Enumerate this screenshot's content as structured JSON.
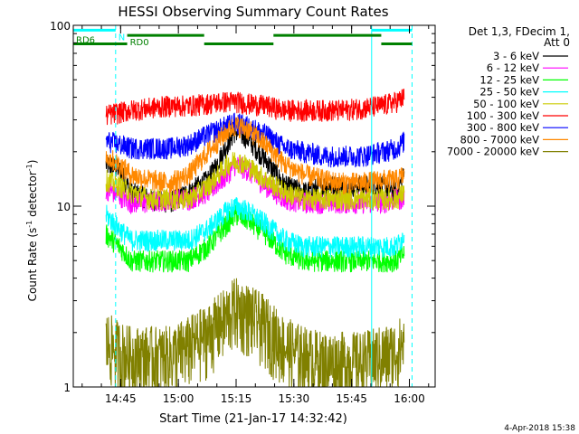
{
  "chart_data": {
    "type": "line",
    "title": "HESSI Observing Summary Count Rates",
    "xlabel": "Start Time (21-Jan-17 14:32:42)",
    "ylabel_main": "Count Rate (s",
    "ylabel_sup1": "-1",
    "ylabel_mid": " detector",
    "ylabel_sup2": "-1",
    "ylabel_end": ")",
    "yscale": "log",
    "ylim": [
      1,
      100
    ],
    "y_ticks": [
      {
        "v": 1,
        "label": "1"
      },
      {
        "v": 10,
        "label": "10"
      },
      {
        "v": 100,
        "label": "100"
      }
    ],
    "xlim_minutes": [
      0,
      94
    ],
    "x_ticks": [
      {
        "m": 12.3,
        "label": "14:45"
      },
      {
        "m": 27.3,
        "label": "15:00"
      },
      {
        "m": 42.3,
        "label": "15:15"
      },
      {
        "m": 57.3,
        "label": "15:30"
      },
      {
        "m": 72.3,
        "label": "15:45"
      },
      {
        "m": 87.3,
        "label": "16:00"
      }
    ],
    "legend_header": [
      "Det 1,3, FDecim 1,",
      "Att 0"
    ],
    "legend_position": "right",
    "series": [
      {
        "name": "3 - 6 keV",
        "color": "#000000",
        "x": [
          8.5,
          12,
          15,
          20,
          25,
          30,
          35,
          40,
          42,
          45,
          50,
          55,
          60,
          65,
          70,
          75,
          80,
          84,
          86
        ],
        "y": [
          17,
          16,
          12,
          11,
          10.5,
          12,
          14,
          22,
          26,
          24,
          18,
          13,
          12,
          13,
          13,
          13,
          13,
          12,
          15
        ]
      },
      {
        "name": "6 - 12 keV",
        "color": "#ff00ff",
        "x": [
          8.5,
          12,
          15,
          20,
          25,
          30,
          35,
          40,
          42,
          45,
          50,
          55,
          60,
          65,
          70,
          75,
          80,
          84,
          86
        ],
        "y": [
          12.5,
          11.5,
          10.5,
          10.5,
          11,
          11,
          12,
          15,
          17,
          16,
          13,
          11,
          10.5,
          10.5,
          10.5,
          10.5,
          10.5,
          11,
          11
        ]
      },
      {
        "name": "12 - 25 keV",
        "color": "#00ff00",
        "x": [
          8.5,
          12,
          15,
          20,
          25,
          30,
          35,
          40,
          42,
          45,
          50,
          55,
          60,
          65,
          70,
          75,
          80,
          84,
          86
        ],
        "y": [
          7,
          6,
          5,
          5,
          5,
          5,
          6,
          8,
          9,
          8.5,
          7,
          5.5,
          5,
          5,
          5,
          5,
          5,
          5,
          5.5
        ]
      },
      {
        "name": "25 - 50 keV",
        "color": "#00ffff",
        "x": [
          8.5,
          12,
          15,
          20,
          25,
          30,
          35,
          40,
          42,
          45,
          50,
          55,
          60,
          65,
          70,
          75,
          80,
          84,
          86
        ],
        "y": [
          9,
          7.5,
          6.5,
          6.5,
          6.5,
          6.5,
          7.5,
          9.5,
          10,
          9.5,
          8,
          6.5,
          6,
          6,
          6,
          6,
          6,
          6,
          7
        ]
      },
      {
        "name": "50 - 100 keV",
        "color": "#cccc00",
        "x": [
          8.5,
          12,
          15,
          20,
          25,
          30,
          35,
          40,
          42,
          45,
          50,
          55,
          60,
          65,
          70,
          75,
          80,
          84,
          86
        ],
        "y": [
          14,
          13,
          12,
          11,
          11,
          11,
          13,
          17,
          18,
          17,
          14,
          12,
          11,
          11,
          11,
          11,
          11,
          11,
          12
        ]
      },
      {
        "name": "100 - 300 keV",
        "color": "#ff0000",
        "x": [
          8.5,
          12,
          15,
          20,
          25,
          30,
          35,
          40,
          42,
          45,
          50,
          55,
          60,
          65,
          70,
          75,
          80,
          84,
          86
        ],
        "y": [
          32,
          33,
          34,
          35,
          36,
          36,
          37,
          38,
          38,
          37,
          36,
          34,
          34,
          34,
          34,
          35,
          36,
          38,
          40
        ]
      },
      {
        "name": "300 - 800 keV",
        "color": "#0000ff",
        "x": [
          8.5,
          12,
          15,
          20,
          25,
          30,
          35,
          40,
          42,
          45,
          50,
          55,
          60,
          65,
          70,
          75,
          80,
          84,
          86
        ],
        "y": [
          23,
          22,
          21,
          21,
          21,
          22,
          25,
          28,
          29,
          28,
          25,
          21,
          20,
          19,
          19,
          19,
          20,
          21,
          23
        ]
      },
      {
        "name": "800 - 7000 keV",
        "color": "#ff8800",
        "x": [
          8.5,
          12,
          15,
          20,
          25,
          30,
          35,
          40,
          42,
          45,
          50,
          55,
          60,
          65,
          70,
          75,
          80,
          84,
          86
        ],
        "y": [
          19,
          17,
          15,
          14,
          13.5,
          15,
          20,
          26,
          28,
          27,
          22,
          17,
          15,
          14,
          13.5,
          13.5,
          14,
          14,
          15
        ]
      },
      {
        "name": "7000 - 20000 keV",
        "color": "#808000",
        "x": [
          8.5,
          12,
          15,
          20,
          25,
          30,
          35,
          40,
          42,
          45,
          50,
          55,
          60,
          65,
          70,
          75,
          80,
          84,
          86
        ],
        "y": [
          1.8,
          1.6,
          1.5,
          1.5,
          1.5,
          1.7,
          2,
          2.5,
          2.8,
          2.6,
          2.2,
          1.7,
          1.5,
          1.4,
          1.4,
          1.4,
          1.5,
          1.6,
          1.8
        ]
      }
    ],
    "flags": [
      {
        "label": "N",
        "color": "#00ffff",
        "y_value": 94,
        "segments": [
          [
            0,
            11
          ],
          [
            77.5,
            88
          ]
        ]
      },
      {
        "label": "RD0",
        "color": "#008000",
        "y_value": 88,
        "segments": [
          [
            14,
            34
          ],
          [
            52,
            80
          ]
        ]
      },
      {
        "label": "RD6",
        "color": "#008000",
        "y_value": 79,
        "segments": [
          [
            0,
            14
          ],
          [
            34,
            52
          ],
          [
            80,
            88
          ]
        ]
      }
    ],
    "vlines": [
      {
        "color": "#00ffff",
        "m": 11,
        "style": "dash"
      },
      {
        "color": "#00ffff",
        "m": 77.5,
        "style": "solid"
      },
      {
        "color": "#00ffff",
        "m": 88,
        "style": "dash"
      }
    ],
    "timestamp": "4-Apr-2018 15:38"
  }
}
